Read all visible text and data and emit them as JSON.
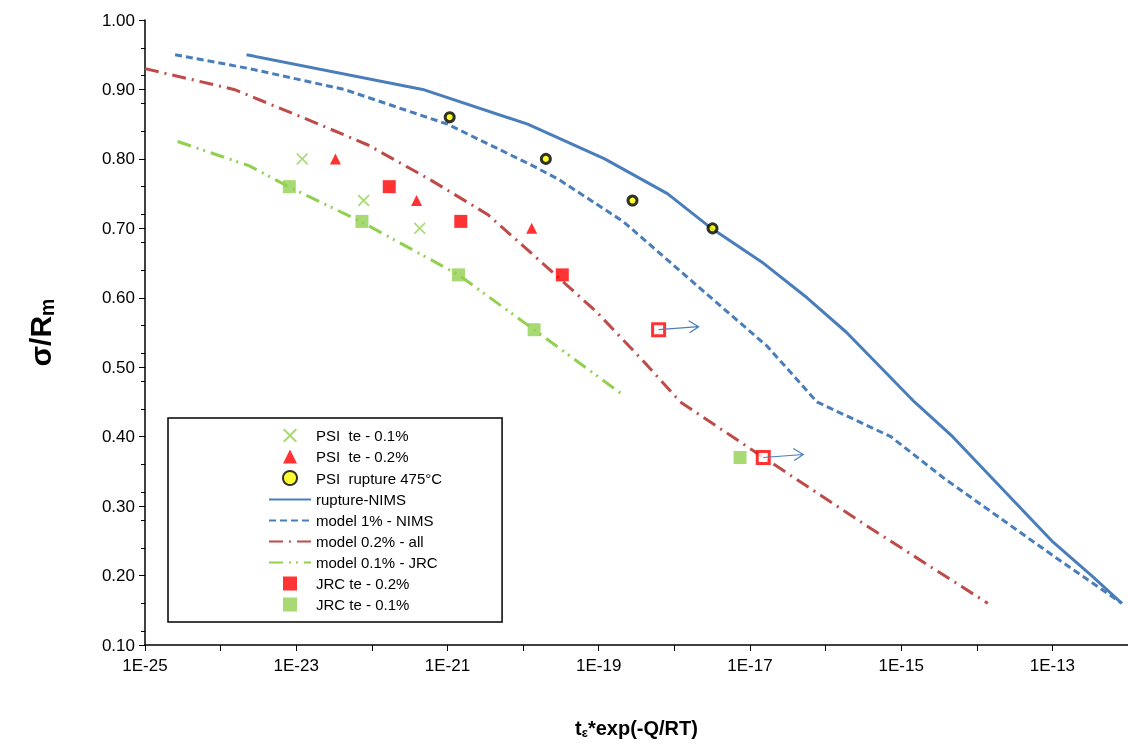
{
  "chart_data": {
    "type": "scatter",
    "xlabel": "t$_{ε}$*exp(-Q/RT)",
    "ylabel": "σ/R$_{m}$",
    "log": "x",
    "xlim": [
      1e-25,
      1e-12
    ],
    "xticks": [
      {
        "value": 1e-25,
        "label": "1E-25"
      },
      {
        "value": 1e-24,
        "label": null
      },
      {
        "value": 1e-23,
        "label": "1E-23"
      },
      {
        "value": 1e-22,
        "label": null
      },
      {
        "value": 1e-21,
        "label": "1E-21"
      },
      {
        "value": 1e-20,
        "label": null
      },
      {
        "value": 1e-19,
        "label": "1E-19"
      },
      {
        "value": 1e-18,
        "label": null
      },
      {
        "value": 1e-17,
        "label": "1E-17"
      },
      {
        "value": 1e-16,
        "label": null
      },
      {
        "value": 1e-15,
        "label": "1E-15"
      },
      {
        "value": 1e-14,
        "label": null
      },
      {
        "value": 1e-13,
        "label": "1E-13"
      }
    ],
    "ylim": [
      0.1,
      1.0
    ],
    "yticks": [
      {
        "value": 0.1,
        "label": "0.10"
      },
      {
        "value": 0.2,
        "label": "0.20"
      },
      {
        "value": 0.3,
        "label": "0.30"
      },
      {
        "value": 0.4,
        "label": "0.40"
      },
      {
        "value": 0.5,
        "label": "0.50"
      },
      {
        "value": 0.6,
        "label": "0.60"
      },
      {
        "value": 0.7,
        "label": "0.70"
      },
      {
        "value": 0.8,
        "label": "0.80"
      },
      {
        "value": 0.9,
        "label": "0.90"
      },
      {
        "value": 1.0,
        "label": "1.00"
      }
    ],
    "grid": false,
    "legend": "bottom left",
    "series": [
      {
        "name": "PSI  te - 0.1%",
        "marker": "cross",
        "color": "#92d050",
        "x": [
          1.2e-23,
          7.8e-23,
          4.3e-22
        ],
        "values": [
          0.8,
          0.74,
          0.7
        ]
      },
      {
        "name": "PSI  te - 0.2%",
        "marker": "triangle",
        "color": "#ff0000",
        "x": [
          3.3e-23,
          3.9e-22,
          1.3e-20
        ],
        "values": [
          0.8,
          0.74,
          0.7
        ]
      },
      {
        "name": "PSI  rupture 475°C",
        "marker": "circle",
        "color": "#000000",
        "x": [
          1.07e-21,
          2e-20,
          2.8e-19,
          3.2e-18
        ],
        "values": [
          0.86,
          0.8,
          0.74,
          0.7
        ]
      },
      {
        "name": "rupture-NIMS",
        "type": "line",
        "marker": "none",
        "line_style": "solid",
        "color": "#4a7ebb",
        "x": [
          2.2e-24,
          4.7e-22,
          1.15e-20,
          1.2e-19,
          8.1e-19,
          3.1e-18,
          1.5e-17,
          5.7e-17,
          1.9e-16,
          1.5e-15,
          4.8e-15,
          9.8e-14,
          3.3e-13,
          8.3e-13
        ],
        "values": [
          0.95,
          0.9,
          0.85,
          0.8,
          0.75,
          0.7,
          0.65,
          0.6,
          0.55,
          0.45,
          0.4,
          0.25,
          0.2,
          0.16
        ]
      },
      {
        "name": "model 1% - NIMS",
        "type": "line",
        "marker": "none",
        "line_style": "dashed",
        "color": "#4a7ebb",
        "x": [
          2.5e-25,
          2.4e-24,
          4.3e-23,
          1e-21,
          1.35e-20,
          3e-20,
          2.1e-19,
          2.4e-18,
          1.7e-17,
          7.7e-17,
          7.3e-16,
          3.7e-15,
          9.8e-14,
          8.3e-13
        ],
        "values": [
          0.95,
          0.93,
          0.9,
          0.85,
          0.79,
          0.77,
          0.71,
          0.61,
          0.53,
          0.45,
          0.4,
          0.34,
          0.23,
          0.16
        ]
      },
      {
        "name": "model 0.2% - all",
        "type": "line",
        "marker": "none",
        "line_style": "dashdot",
        "color": "#be4b48",
        "x": [
          1e-25,
          1.5e-24,
          1.2e-23,
          8.9e-23,
          5.9e-22,
          3.4e-21,
          1.8e-20,
          9.3e-20,
          3.8e-19,
          1.2e-18,
          1.1e-17,
          3.7e-16,
          1.4e-14
        ],
        "values": [
          0.93,
          0.9,
          0.86,
          0.82,
          0.77,
          0.72,
          0.65,
          0.58,
          0.51,
          0.45,
          0.38,
          0.27,
          0.16
        ]
      },
      {
        "name": "model 0.1% - JRC",
        "type": "line",
        "marker": "none",
        "line_style": "dashdotdot",
        "color": "#92d050",
        "x": [
          2.7e-25,
          2.4e-24,
          7.9e-24,
          7.1e-23,
          1.4e-21,
          1.4e-20,
          2.1e-19
        ],
        "values": [
          0.825,
          0.79,
          0.76,
          0.71,
          0.633,
          0.554,
          0.46
        ]
      },
      {
        "name": "JRC te - 0.2%",
        "marker": "square",
        "color": "#ff0000",
        "x": [
          1.7e-22,
          1.5e-21,
          3.3e-20
        ],
        "values": [
          0.76,
          0.71,
          0.633
        ]
      },
      {
        "name": "JRC te - 0.1%",
        "marker": "square",
        "color": "#92d050",
        "x": [
          8.1e-24,
          7.4e-23,
          1.4e-21,
          1.4e-20,
          7.4e-18
        ],
        "values": [
          0.76,
          0.71,
          0.633,
          0.554,
          0.37
        ]
      },
      {
        "marker": "square",
        "color": "#ff0000",
        "x": [
          6.2e-19,
          1.5e-17
        ],
        "values": [
          0.554,
          0.37
        ]
      }
    ]
  }
}
